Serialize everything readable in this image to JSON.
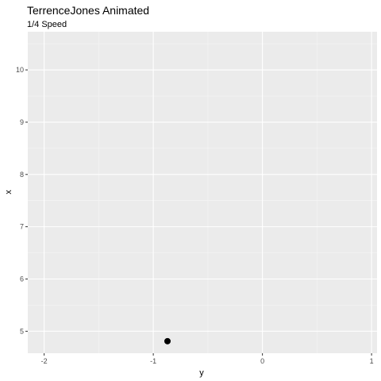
{
  "chart_data": {
    "type": "scatter",
    "title": "TerrenceJones Animated",
    "subtitle": "1/4 Speed",
    "xlabel": "y",
    "ylabel": "x",
    "xlim": [
      -2.15,
      1.05
    ],
    "ylim": [
      4.58,
      10.73
    ],
    "x_ticks": [
      -2,
      -1,
      0,
      1
    ],
    "x_tick_labels": [
      "-2",
      "-1",
      "0",
      "1"
    ],
    "y_ticks": [
      5,
      6,
      7,
      8,
      9,
      10
    ],
    "y_tick_labels": [
      "5",
      "6",
      "7",
      "8",
      "9",
      "10"
    ],
    "x": [
      -0.87
    ],
    "y": [
      4.81
    ],
    "grid": true,
    "legend": "none",
    "colors": {
      "panel_background": "#ebebeb",
      "grid_major": "#ffffff",
      "grid_minor": "#f5f5f5",
      "point": "#000000",
      "tick_text": "#4d4d4d",
      "axis_tick": "#333333"
    }
  }
}
